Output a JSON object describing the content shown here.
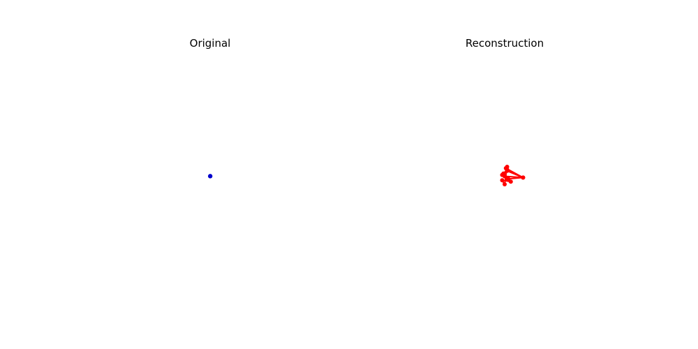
{
  "chart_data": [
    {
      "type": "line",
      "title": "Original",
      "xlabel": "",
      "ylabel": "",
      "axes_visible": false,
      "grid": false,
      "xlim": [
        -1,
        1
      ],
      "ylim": [
        -1,
        1
      ],
      "series": [
        {
          "color": "#0000cc",
          "marker": "circle",
          "points": [
            [
              0.0,
              0.0
            ],
            [
              0.002,
              0.0
            ],
            [
              0.001,
              0.002
            ]
          ]
        }
      ]
    },
    {
      "type": "line",
      "title": "Reconstruction",
      "xlabel": "",
      "ylabel": "",
      "axes_visible": false,
      "grid": false,
      "xlim": [
        -1,
        1
      ],
      "ylim": [
        -1,
        1
      ],
      "series": [
        {
          "color": "#ff0000",
          "marker": "circle",
          "points": [
            [
              0.0,
              0.0
            ],
            [
              0.15,
              -0.01
            ],
            [
              0.02,
              0.04
            ],
            [
              -0.01,
              0.02
            ],
            [
              0.02,
              -0.02
            ],
            [
              0.15,
              -0.01
            ],
            [
              0.01,
              0.06
            ],
            [
              0.02,
              0.07
            ],
            [
              0.0,
              -0.06
            ],
            [
              -0.02,
              -0.03
            ],
            [
              0.05,
              -0.04
            ],
            [
              0.0,
              0.0
            ],
            [
              0.03,
              -0.02
            ],
            [
              -0.02,
              0.01
            ],
            [
              0.02,
              0.05
            ]
          ]
        }
      ]
    }
  ]
}
